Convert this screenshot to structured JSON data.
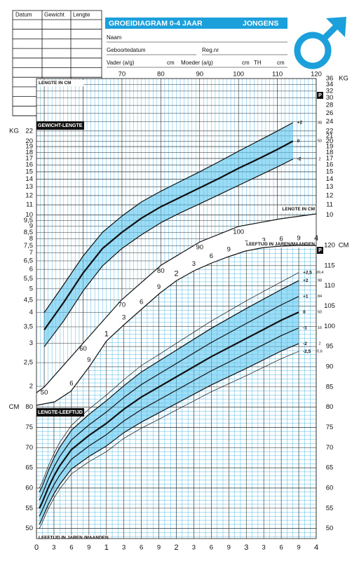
{
  "form": {
    "columns": [
      "Datum",
      "Gewicht",
      "Lengte"
    ],
    "title": "GROEIDIAGRAM 0-4 JAAR",
    "gender": "JONGENS",
    "fields": {
      "name": "Naam",
      "birthdate": "Geboortedatum",
      "reg": "Reg.nr",
      "father": "Vader (a/g)",
      "father_unit": "cm",
      "mother": "Moeder (a/g)",
      "mother_unit": "cm",
      "th": "TH",
      "th_unit": "cm"
    }
  },
  "chart_data": [
    {
      "type": "line",
      "title": "GEWICHT-LENGTE",
      "xlabel": "LENGTE IN CM",
      "ylabel": "KG",
      "percentile_header": "P",
      "log_scale": true,
      "grid": true,
      "grid_color": "#2aa7df",
      "band_color": "#5bc5ee",
      "xlim": [
        48,
        120
      ],
      "xticks": [
        50,
        60,
        70,
        80,
        90,
        100,
        110,
        120
      ],
      "ylim": [
        2,
        36
      ],
      "yticks": [
        2,
        {
          "value": 2.5,
          "label": "2,5"
        },
        3,
        {
          "value": 3.5,
          "label": "3,5"
        },
        4,
        {
          "value": 4.5,
          "label": "4,5"
        },
        5,
        {
          "value": 5.5,
          "label": "5,5"
        },
        6,
        {
          "value": 6.5,
          "label": "6,5"
        },
        7,
        {
          "value": 7.5,
          "label": "7,5"
        },
        8,
        {
          "value": 8.5,
          "label": "8,5"
        },
        9,
        {
          "value": 9.5,
          "label": "9,5"
        },
        10,
        11,
        12,
        13,
        14,
        15,
        16,
        17,
        18,
        19,
        20,
        22
      ],
      "y2lim": [
        2,
        36
      ],
      "y2ticks": [
        10,
        11,
        12,
        13,
        14,
        15,
        16,
        17,
        18,
        19,
        20,
        21,
        22,
        24,
        26,
        28,
        30,
        32,
        34,
        36
      ],
      "x": [
        50,
        55,
        60,
        65,
        70,
        75,
        80,
        85,
        90,
        95,
        100,
        105,
        110,
        114
      ],
      "series": [
        {
          "name": "+2",
          "percentile": "98",
          "color": "#111111",
          "line_width": 1.2,
          "band_edge": true,
          "values": [
            4.0,
            5.2,
            6.8,
            8.5,
            9.9,
            11.3,
            12.5,
            13.7,
            15.0,
            16.5,
            18.2,
            20.0,
            22.0,
            23.8
          ]
        },
        {
          "name": "0",
          "percentile": "50",
          "color": "#111111",
          "line_width": 2.2,
          "values": [
            3.4,
            4.4,
            5.8,
            7.3,
            8.5,
            9.7,
            10.8,
            11.8,
            12.9,
            14.1,
            15.5,
            16.9,
            18.5,
            20.0
          ]
        },
        {
          "name": "-2",
          "percentile": "2",
          "color": "#111111",
          "line_width": 1.2,
          "band_edge": true,
          "values": [
            2.9,
            3.7,
            4.9,
            6.2,
            7.3,
            8.3,
            9.3,
            10.2,
            11.1,
            12.1,
            13.2,
            14.4,
            15.7,
            16.9
          ]
        }
      ]
    },
    {
      "type": "line",
      "title": "LENGTE-LEEFTIJD",
      "xlabel": "LEEFTIJD IN JAREN /MAANDEN",
      "xlabel_top": "LEEFTIJD IN JAREN/MAANDEN",
      "ylabel": "CM",
      "percentile_header": "P",
      "log_scale": false,
      "grid": true,
      "grid_color": "#2aa7df",
      "band_color": "#5bc5ee",
      "xlim": [
        0,
        48
      ],
      "xticks": [
        0,
        3,
        6,
        9,
        {
          "value": 12,
          "label": "1"
        },
        {
          "value": 15,
          "label": "3"
        },
        {
          "value": 18,
          "label": "6"
        },
        {
          "value": 21,
          "label": "9"
        },
        {
          "value": 24,
          "label": "2"
        },
        {
          "value": 27,
          "label": "3"
        },
        {
          "value": 30,
          "label": "6"
        },
        {
          "value": 33,
          "label": "9"
        },
        {
          "value": 36,
          "label": "3"
        },
        {
          "value": 39,
          "label": "3"
        },
        {
          "value": 42,
          "label": "6"
        },
        {
          "value": 45,
          "label": "9"
        },
        {
          "value": 48,
          "label": "4"
        }
      ],
      "ylim": [
        47.5,
        120
      ],
      "yticks": [
        50,
        55,
        60,
        65,
        70,
        75,
        80
      ],
      "y2lim": [
        47.5,
        120
      ],
      "y2ticks": [
        50,
        55,
        60,
        65,
        70,
        75,
        80,
        85,
        90,
        95,
        100,
        105,
        110,
        115,
        120
      ],
      "x": [
        0.5,
        1,
        2,
        3,
        4,
        6,
        9,
        12,
        15,
        18,
        21,
        24,
        30,
        36,
        42,
        45
      ],
      "series": [
        {
          "name": "+2,5",
          "percentile": "99,4",
          "color": "#111111",
          "line_width": 0.7,
          "values": [
            60,
            61.5,
            65.3,
            68.5,
            71.3,
            75.5,
            79.5,
            83,
            86.8,
            90.3,
            93,
            95.8,
            101.3,
            106.3,
            111,
            113.3
          ]
        },
        {
          "name": "+2",
          "percentile": "98",
          "color": "#111111",
          "line_width": 1.2,
          "band_edge": true,
          "values": [
            59,
            60.5,
            64.2,
            67.4,
            70.1,
            74.3,
            78.2,
            81.6,
            85.3,
            88.7,
            91.4,
            94.1,
            99.5,
            104.4,
            109.1,
            111.3
          ]
        },
        {
          "name": "+1",
          "percentile": "84",
          "color": "#111111",
          "line_width": 1.2,
          "values": [
            57,
            58.5,
            62.1,
            65.2,
            67.8,
            71.9,
            75.6,
            78.8,
            82.4,
            85.6,
            88.2,
            90.8,
            96,
            100.7,
            105.3,
            107.4
          ]
        },
        {
          "name": "0",
          "percentile": "50",
          "color": "#111111",
          "line_width": 2.2,
          "values": [
            55,
            56.5,
            60,
            63,
            65.5,
            69.5,
            73,
            76,
            79.5,
            82.5,
            85,
            87.5,
            92.5,
            97,
            101.5,
            103.5
          ]
        },
        {
          "name": "-1",
          "percentile": "16",
          "color": "#111111",
          "line_width": 1.2,
          "values": [
            53,
            54.5,
            57.9,
            60.8,
            63.2,
            67.1,
            70.4,
            73.2,
            76.6,
            79.4,
            81.8,
            84.2,
            89,
            93.3,
            97.7,
            99.6
          ]
        },
        {
          "name": "-2",
          "percentile": "2",
          "color": "#111111",
          "line_width": 1.2,
          "band_edge": true,
          "values": [
            51,
            52.5,
            55.8,
            58.6,
            60.9,
            64.7,
            67.8,
            70.4,
            73.7,
            76.3,
            78.6,
            80.9,
            85.5,
            89.6,
            93.9,
            95.7
          ]
        },
        {
          "name": "-2,5",
          "percentile": "0,6",
          "color": "#111111",
          "line_width": 0.7,
          "values": [
            50,
            51.5,
            54.8,
            57.5,
            59.8,
            63.5,
            66.5,
            69,
            72.3,
            74.8,
            77,
            79.3,
            83.8,
            87.8,
            92,
            93.8
          ]
        }
      ]
    }
  ]
}
